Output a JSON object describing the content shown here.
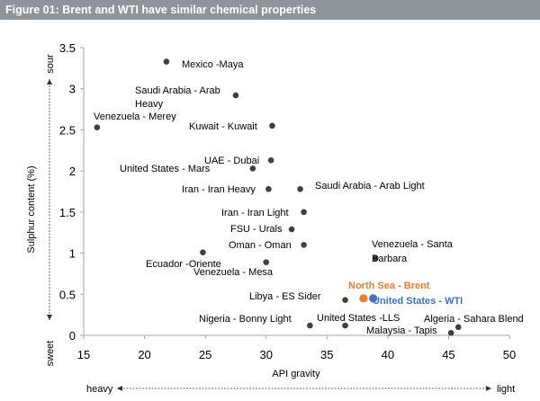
{
  "header": {
    "title": "Figure 01: Brent and WTI have similar chemical properties"
  },
  "colors": {
    "point": "#404040",
    "brent": "#ed7d31",
    "wti": "#4472c4",
    "header_bg": "#8d949a"
  },
  "chart_data": {
    "type": "scatter",
    "title": "Figure 01: Brent and WTI have similar chemical properties",
    "xlabel": "API gravity",
    "ylabel": "Sulphur content (%)",
    "xlim": [
      15,
      50
    ],
    "ylim": [
      0,
      3.5
    ],
    "xticks": [
      15,
      20,
      25,
      30,
      35,
      40,
      45,
      50
    ],
    "yticks": [
      0,
      0.5,
      1,
      1.5,
      2,
      2.5,
      3,
      3.5
    ],
    "grid": false,
    "x_scale_note": {
      "left": "heavy",
      "right": "light"
    },
    "y_scale_note": {
      "bottom": "sweet",
      "top": "sour"
    },
    "points": [
      {
        "label": "Mexico -Maya",
        "x": 21.8,
        "y": 3.33,
        "highlight": ""
      },
      {
        "label": "Saudi Arabia - Arab Heavy",
        "x": 27.5,
        "y": 2.92,
        "highlight": ""
      },
      {
        "label": "Venezuela - Merey",
        "x": 16.1,
        "y": 2.53,
        "highlight": ""
      },
      {
        "label": "Kuwait - Kuwait",
        "x": 30.5,
        "y": 2.55,
        "highlight": ""
      },
      {
        "label": "UAE - Dubai",
        "x": 30.4,
        "y": 2.13,
        "highlight": ""
      },
      {
        "label": "United States - Mars",
        "x": 28.9,
        "y": 2.03,
        "highlight": ""
      },
      {
        "label": "Iran - Iran Heavy",
        "x": 30.2,
        "y": 1.78,
        "highlight": ""
      },
      {
        "label": "Saudi Arabia - Arab Light",
        "x": 32.8,
        "y": 1.78,
        "highlight": ""
      },
      {
        "label": "Iran - Iran Light",
        "x": 33.1,
        "y": 1.5,
        "highlight": ""
      },
      {
        "label": "FSU - Urals",
        "x": 32.1,
        "y": 1.29,
        "highlight": ""
      },
      {
        "label": "Oman - Oman",
        "x": 33.1,
        "y": 1.1,
        "highlight": ""
      },
      {
        "label": "Ecuador -Oriente",
        "x": 24.8,
        "y": 1.01,
        "highlight": ""
      },
      {
        "label": "Venezuela - Mesa",
        "x": 30.0,
        "y": 0.89,
        "highlight": ""
      },
      {
        "label": "Venezuela - Santa Barbara",
        "x": 39.0,
        "y": 0.94,
        "highlight": ""
      },
      {
        "label": "Libya - ES Sider",
        "x": 36.5,
        "y": 0.43,
        "highlight": ""
      },
      {
        "label": "North Sea - Brent",
        "x": 38.0,
        "y": 0.45,
        "highlight": "brent"
      },
      {
        "label": "United States - WTI",
        "x": 38.8,
        "y": 0.45,
        "highlight": "wti"
      },
      {
        "label": "Nigeria - Bonny Light",
        "x": 33.6,
        "y": 0.12,
        "highlight": ""
      },
      {
        "label": "United States -LLS",
        "x": 36.5,
        "y": 0.12,
        "highlight": ""
      },
      {
        "label": "Algeria - Sahara Blend",
        "x": 45.8,
        "y": 0.1,
        "highlight": ""
      },
      {
        "label": "Malaysia - Tapis",
        "x": 45.2,
        "y": 0.03,
        "highlight": ""
      }
    ]
  }
}
